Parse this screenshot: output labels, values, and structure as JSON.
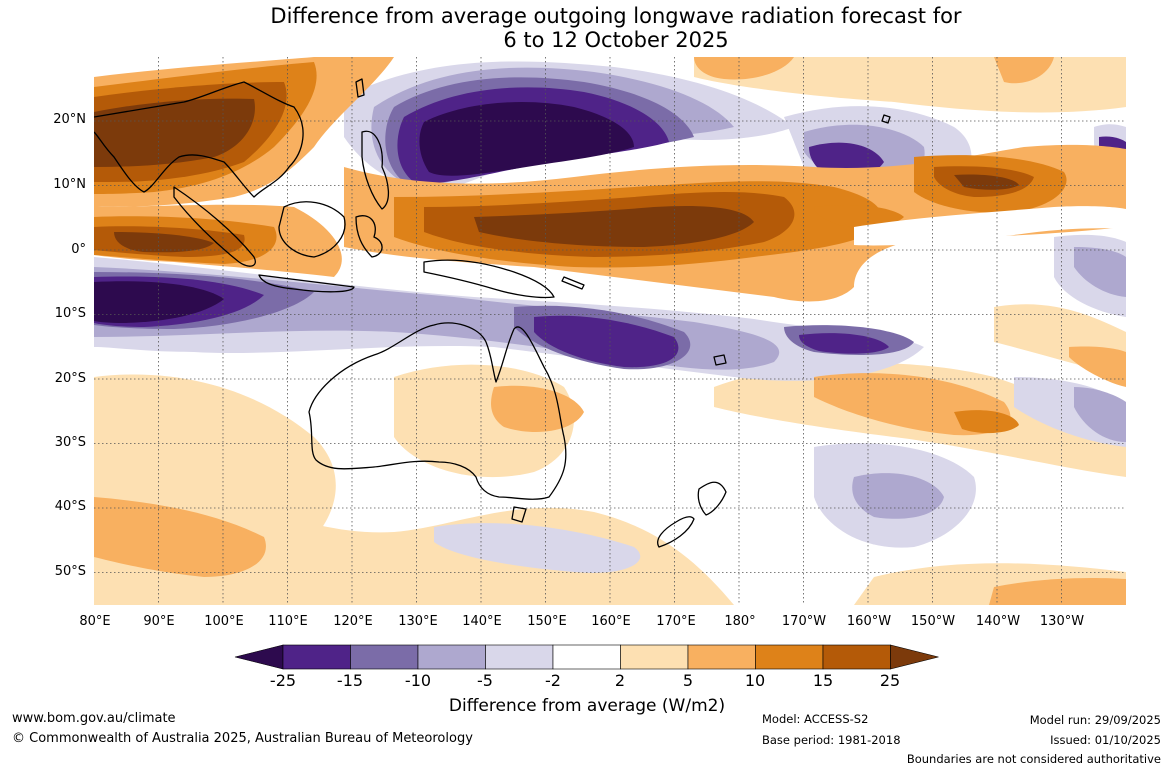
{
  "title": {
    "line1": "Difference from average outgoing longwave radiation forecast for",
    "line2": "6 to 12 October 2025"
  },
  "axes": {
    "lat_labels": [
      "20°N",
      "10°N",
      "0°",
      "10°S",
      "20°S",
      "30°S",
      "40°S",
      "50°S"
    ],
    "lon_labels": [
      "80°E",
      "90°E",
      "100°E",
      "110°E",
      "120°E",
      "130°E",
      "140°E",
      "150°E",
      "160°E",
      "170°E",
      "180°",
      "170°W",
      "160°W",
      "150°W",
      "140°W",
      "130°W"
    ]
  },
  "legend": {
    "title": "Difference from average (W/m2)",
    "ticks": [
      "-25",
      "-15",
      "-10",
      "-5",
      "-2",
      "2",
      "5",
      "10",
      "15",
      "25"
    ],
    "colors": [
      "#2d0a4e",
      "#4f2388",
      "#7b6ca8",
      "#aea8cf",
      "#d9d7ea",
      "#ffffff",
      "#fde0b2",
      "#f8b060",
      "#de8219",
      "#b45a08",
      "#7c3a0b"
    ]
  },
  "footer": {
    "website": "www.bom.gov.au/climate",
    "copyright": "© Commonwealth of Australia 2025, Australian Bureau of Meteorology",
    "model": "Model: ACCESS-S2",
    "base_period": "Base period: 1981-2018",
    "model_run": "Model run: 29/09/2025",
    "issued": "Issued: 01/10/2025",
    "disclaimer": "Boundaries are not considered authoritative"
  },
  "map_palette": {
    "neutral": "#ffffff",
    "pos_2_5": "#fde0b2",
    "pos_5_10": "#f8b060",
    "pos_10_15": "#de8219",
    "pos_15_25": "#b45a08",
    "pos_25_plus": "#7c3a0b",
    "neg_2_5": "#d9d7ea",
    "neg_5_10": "#aea8cf",
    "neg_10_15": "#7b6ca8",
    "neg_15_25": "#4f2388",
    "neg_25_plus": "#2d0a4e",
    "coast": "#000000",
    "grid": "#555555"
  }
}
